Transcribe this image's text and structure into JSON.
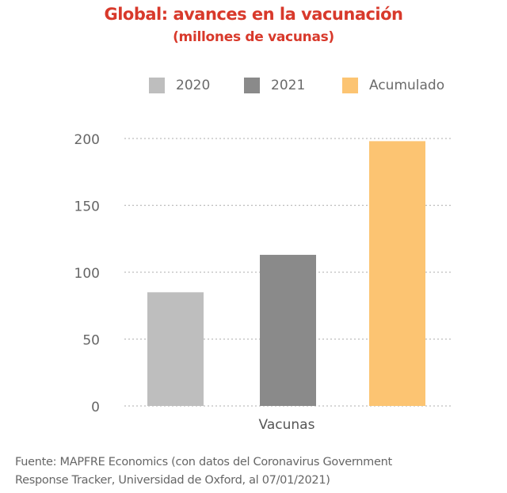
{
  "chart_data": {
    "type": "bar",
    "title": "Global: avances en la vacunación",
    "subtitle": "(millones de vacunas)",
    "categories": [
      "Vacunas"
    ],
    "series": [
      {
        "name": "2020",
        "values": [
          85
        ],
        "color": "#bebebe"
      },
      {
        "name": "2021",
        "values": [
          113
        ],
        "color": "#8a8a8a"
      },
      {
        "name": "Acumulado",
        "values": [
          198
        ],
        "color": "#fcc472"
      }
    ],
    "xlabel": "Vacunas",
    "ylabel": "",
    "ylim": [
      0,
      200
    ],
    "yticks": [
      0,
      50,
      100,
      150,
      200
    ],
    "ytick_labels": [
      "0",
      "50",
      "100",
      "150",
      "200"
    ],
    "grid": true,
    "legend_position": "top"
  },
  "source": {
    "line1": "Fuente: MAPFRE Economics (con datos del Coronavirus Government",
    "line2": "Response Tracker, Universidad de Oxford, al 07/01/2021)"
  }
}
